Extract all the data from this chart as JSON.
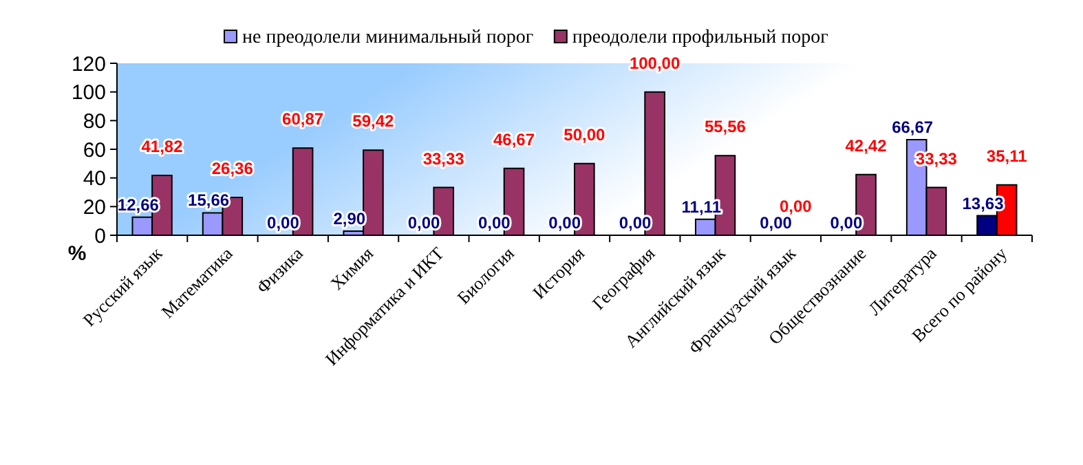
{
  "chart_data": {
    "type": "bar",
    "ylabel": "%",
    "categories": [
      "Русский язык",
      "Математика",
      "Физика",
      "Химия",
      "Информатика и ИКТ",
      "Биология",
      "История",
      "География",
      "Английский язык",
      "Французский язык",
      "Обществознание",
      "Литература",
      "Всего по району"
    ],
    "series": [
      {
        "name": "не преодолели минимальный порог",
        "color": "#9999ff",
        "colors": [
          "#9999ff",
          "#9999ff",
          "#9999ff",
          "#9999ff",
          "#9999ff",
          "#9999ff",
          "#9999ff",
          "#9999ff",
          "#9999ff",
          "#9999ff",
          "#9999ff",
          "#9999ff",
          "#000080"
        ],
        "values": [
          12.66,
          15.66,
          0,
          2.9,
          0,
          0,
          0,
          0,
          11.11,
          0,
          0,
          66.67,
          13.63
        ],
        "value_labels": [
          "12,66",
          "15,66",
          "0,00",
          "2,90",
          "0,00",
          "0,00",
          "0,00",
          "0,00",
          "11,11",
          "0,00",
          "0,00",
          "66,67",
          "13,63"
        ]
      },
      {
        "name": "преодолели профильный порог",
        "color": "#993366",
        "colors": [
          "#993366",
          "#993366",
          "#993366",
          "#993366",
          "#993366",
          "#993366",
          "#993366",
          "#993366",
          "#993366",
          "#993366",
          "#993366",
          "#993366",
          "#ff0000"
        ],
        "values": [
          41.82,
          26.36,
          60.87,
          59.42,
          33.33,
          46.67,
          50,
          100,
          55.56,
          0,
          42.42,
          33.33,
          35.11
        ],
        "value_labels": [
          "41,82",
          "26,36",
          "60,87",
          "59,42",
          "33,33",
          "46,67",
          "50,00",
          "100,00",
          "55,56",
          "0,00",
          "42,42",
          "33,33",
          "35,11"
        ]
      }
    ],
    "ylim": [
      0,
      120
    ],
    "yticks": [
      0,
      20,
      40,
      60,
      80,
      100,
      120
    ],
    "grid": false,
    "legend": "top"
  }
}
